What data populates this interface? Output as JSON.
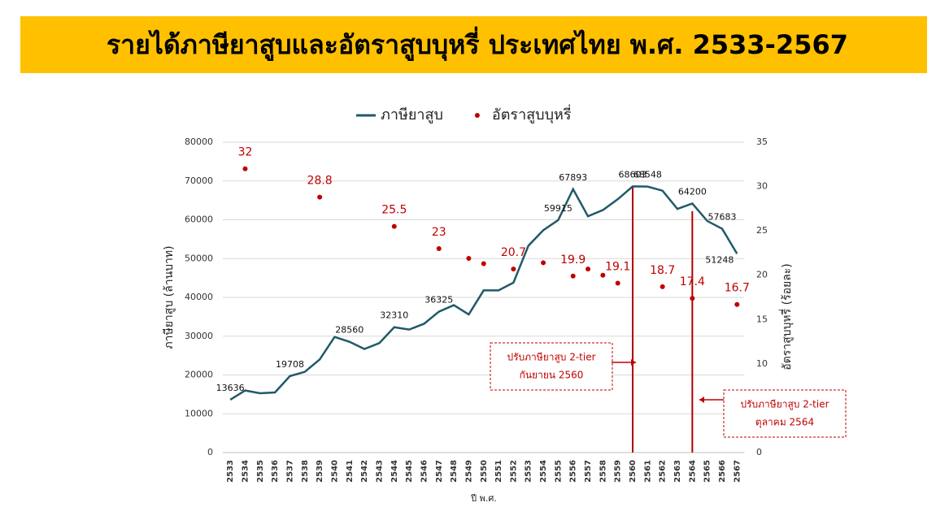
{
  "chart_data": {
    "type": "line",
    "title": "รายได้ภาษียาสูบและอัตราสูบบุหรี่ ประเทศไทย พ.ศ. 2533-2567",
    "x_label": "ปี พ.ศ.",
    "y_label": "ภาษียาสูบ (ล้านบาท)",
    "y2_label": "อัตราสูบบุหรี่ (ร้อยละ)",
    "categories": [
      "2533",
      "2534",
      "2535",
      "2536",
      "2537",
      "2538",
      "2539",
      "2540",
      "2541",
      "2542",
      "2543",
      "2544",
      "2545",
      "2546",
      "2547",
      "2548",
      "2549",
      "2550",
      "2551",
      "2552",
      "2553",
      "2554",
      "2555",
      "2556",
      "2557",
      "2558",
      "2559",
      "2560",
      "2561",
      "2562",
      "2563",
      "2564",
      "2565",
      "2566",
      "2567"
    ],
    "series": [
      {
        "name": "ภาษียาสูบ",
        "color": "#215968",
        "style": "line",
        "values": [
          13636,
          16000,
          15300,
          15500,
          19708,
          20800,
          24000,
          29800,
          28560,
          26700,
          28200,
          32310,
          31700,
          33200,
          36325,
          38000,
          35600,
          41800,
          41800,
          43800,
          53300,
          57300,
          59915,
          67893,
          60900,
          62500,
          65300,
          68603,
          68548,
          67500,
          62800,
          64200,
          59700,
          57683,
          51248
        ],
        "value_labels": [
          "13636",
          null,
          null,
          null,
          "19708",
          null,
          null,
          null,
          "28560",
          null,
          null,
          "32310",
          null,
          null,
          "36325",
          null,
          null,
          null,
          null,
          null,
          null,
          null,
          "59915",
          "67893",
          null,
          null,
          null,
          "68603",
          "68548",
          null,
          null,
          "64200",
          null,
          "57683",
          "51248"
        ]
      },
      {
        "name": "อัตราสูบบุหรี่",
        "color": "#c00000",
        "style": "dots",
        "axis": "y2",
        "values": [
          null,
          32,
          null,
          null,
          null,
          null,
          28.8,
          null,
          null,
          null,
          null,
          25.5,
          null,
          null,
          23,
          null,
          21.9,
          21.3,
          null,
          20.7,
          null,
          21.4,
          null,
          19.9,
          20.7,
          20.0,
          19.1,
          null,
          null,
          18.7,
          null,
          17.4,
          null,
          null,
          16.7
        ],
        "value_labels": [
          null,
          "32",
          null,
          null,
          null,
          null,
          "28.8",
          null,
          null,
          null,
          null,
          "25.5",
          null,
          null,
          "23",
          null,
          null,
          null,
          null,
          "20.7",
          null,
          null,
          null,
          "19.9",
          null,
          null,
          "19.1",
          null,
          null,
          "18.7",
          null,
          "17.4",
          null,
          null,
          "16.7"
        ]
      }
    ],
    "ylim": [
      0,
      80000
    ],
    "yticks": [
      0,
      10000,
      20000,
      30000,
      40000,
      50000,
      60000,
      70000,
      80000
    ],
    "y2lim": [
      0,
      35
    ],
    "y2ticks": [
      0,
      5,
      10,
      15,
      20,
      25,
      30,
      35
    ],
    "grid": true,
    "legend": "top",
    "annotations": [
      {
        "x": "2560",
        "lines": [
          "ปรับภาษียาสูบ 2-tier",
          "กันยายน 2560"
        ]
      },
      {
        "x": "2564",
        "lines": [
          "ปรับภาษียาสูบ 2-tier",
          "ตุลาคม 2564"
        ]
      }
    ]
  }
}
